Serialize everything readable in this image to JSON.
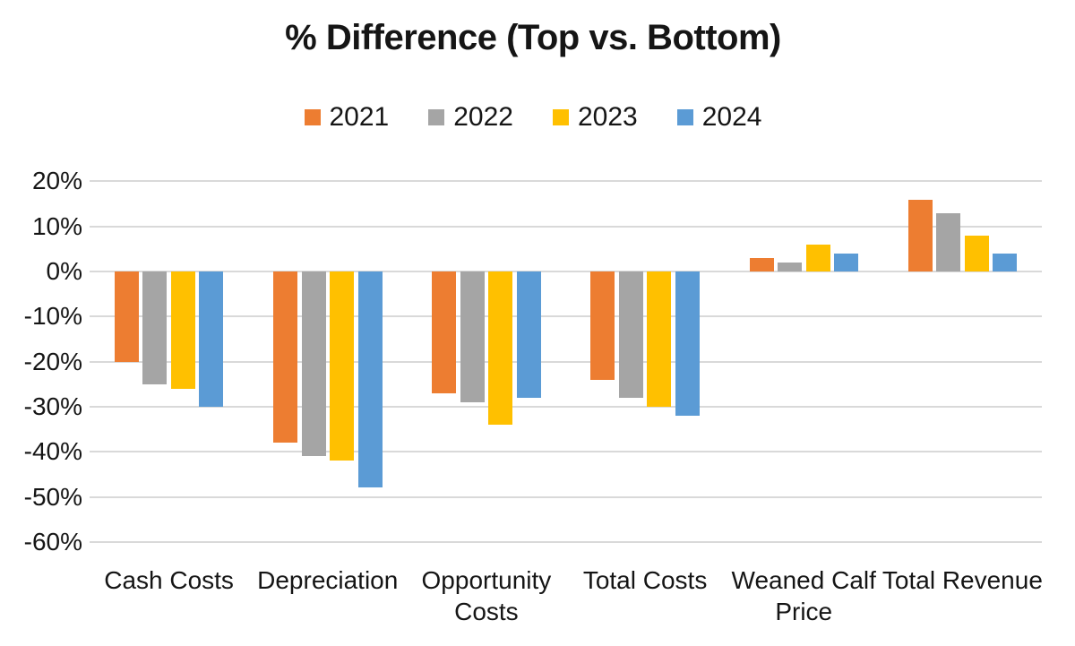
{
  "chart_data": {
    "type": "bar",
    "title": "% Difference (Top vs. Bottom)",
    "categories": [
      "Cash Costs",
      "Depreciation",
      "Opportunity Costs",
      "Total Costs",
      "Weaned Calf Price",
      "Total Revenue"
    ],
    "series": [
      {
        "name": "2021",
        "color": "#ED7D31",
        "values": [
          -20,
          -38,
          -27,
          -24,
          3,
          16
        ]
      },
      {
        "name": "2022",
        "color": "#A5A5A5",
        "values": [
          -25,
          -41,
          -29,
          -28,
          2,
          13
        ]
      },
      {
        "name": "2023",
        "color": "#FFC000",
        "values": [
          -26,
          -42,
          -34,
          -30,
          6,
          8
        ]
      },
      {
        "name": "2024",
        "color": "#5B9BD5",
        "values": [
          -30,
          -48,
          -28,
          -32,
          4,
          4
        ]
      }
    ],
    "y_axis": {
      "unit": "%",
      "range": [
        -60,
        20
      ],
      "tick_step": 10,
      "ticks": [
        {
          "label": "20%",
          "value": 20
        },
        {
          "label": "10%",
          "value": 10
        },
        {
          "label": "0%",
          "value": 0
        },
        {
          "label": "-10%",
          "value": -10
        },
        {
          "label": "-20%",
          "value": -20
        },
        {
          "label": "-30%",
          "value": -30
        },
        {
          "label": "-40%",
          "value": -40
        },
        {
          "label": "-50%",
          "value": -50
        },
        {
          "label": "-60%",
          "value": -60
        }
      ]
    },
    "grid": true,
    "legend_position": "top",
    "colors": {
      "gridline": "#D9D9D9",
      "text": "#151515",
      "background": "#FFFFFF"
    }
  }
}
